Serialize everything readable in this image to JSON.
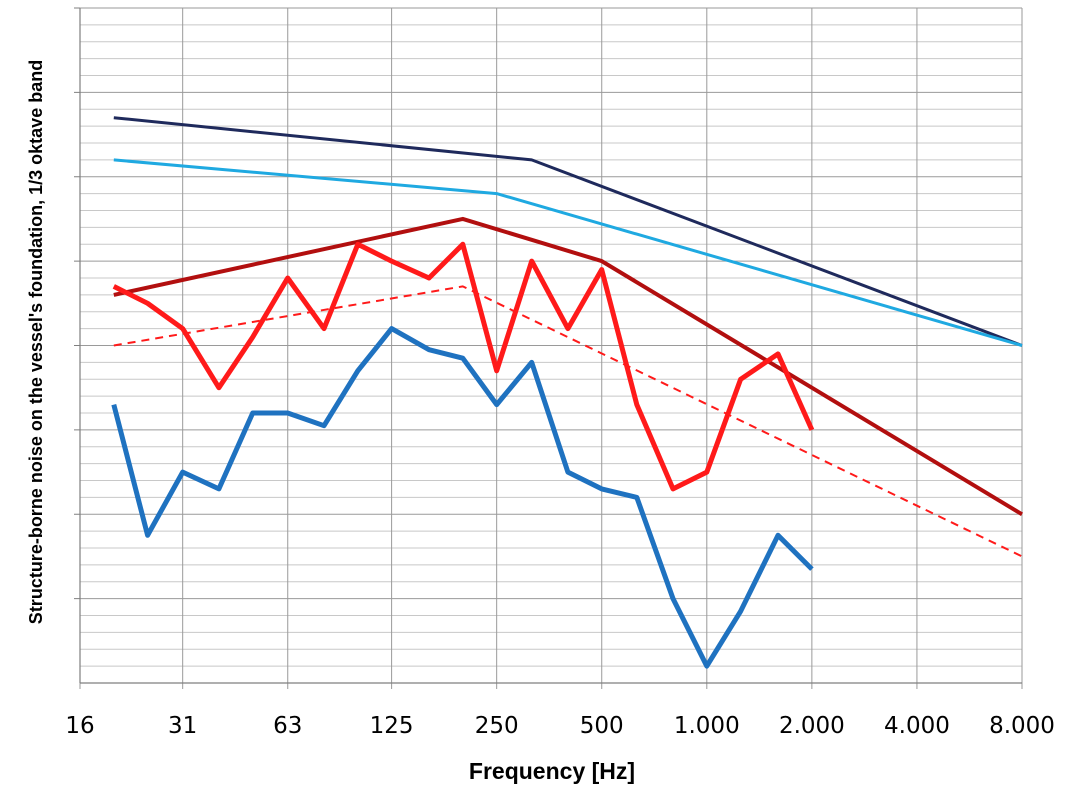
{
  "chart_data": {
    "type": "line",
    "title": "",
    "xlabel": "Frequency  [Hz]",
    "ylabel": "Structure-borne noise on the vessel's foundation, 1/3 oktave band",
    "x_scale": "log2",
    "xlim": [
      16,
      8000
    ],
    "ylim": [
      0,
      8
    ],
    "x_tick_labels": [
      "16",
      "31",
      "63",
      "125",
      "250",
      "500",
      "1.000",
      "2.000",
      "4.000",
      "8.000"
    ],
    "x_tick_values": [
      16,
      31.5,
      63,
      125,
      250,
      500,
      1000,
      2000,
      4000,
      8000
    ],
    "y_tick_labels": [
      "",
      "",
      "",
      "",
      "",
      "",
      "",
      "",
      ""
    ],
    "y_major_step": 1,
    "y_minor_step": 0.2,
    "grid": true,
    "legend": "none",
    "series": [
      {
        "color": "#1f2a5c",
        "width": 3,
        "dash": "solid",
        "x": [
          20,
          315,
          8000
        ],
        "y": [
          6.7,
          6.2,
          4.0
        ]
      },
      {
        "color": "#1fa9e1",
        "width": 3,
        "dash": "solid",
        "x": [
          20,
          250,
          8000
        ],
        "y": [
          6.2,
          5.8,
          4.0
        ]
      },
      {
        "color": "#b20f0f",
        "width": 4,
        "dash": "solid",
        "x": [
          20,
          200,
          500,
          8000
        ],
        "y": [
          4.6,
          5.5,
          5.0,
          2.0
        ]
      },
      {
        "color": "#ff1a1a",
        "width": 2,
        "dash": "dashed",
        "x": [
          20,
          200,
          8000
        ],
        "y": [
          4.0,
          4.7,
          1.5
        ]
      },
      {
        "color": "#ff1a1a",
        "width": 5,
        "dash": "solid",
        "x": [
          20,
          25,
          31.5,
          40,
          50,
          63,
          80,
          100,
          125,
          160,
          200,
          250,
          315,
          400,
          500,
          630,
          800,
          1000,
          1250,
          1600,
          2000
        ],
        "y": [
          4.7,
          4.5,
          4.2,
          3.5,
          4.1,
          4.8,
          4.2,
          5.2,
          5.0,
          4.8,
          5.2,
          3.7,
          5.0,
          4.2,
          4.9,
          3.3,
          2.3,
          2.5,
          3.6,
          3.9,
          3.0
        ]
      },
      {
        "color": "#1f72c0",
        "width": 5,
        "dash": "solid",
        "x": [
          20,
          25,
          31.5,
          40,
          50,
          63,
          80,
          100,
          125,
          160,
          200,
          250,
          315,
          400,
          500,
          630,
          800,
          1000,
          1250,
          1600,
          2000
        ],
        "y": [
          3.3,
          1.75,
          2.5,
          2.3,
          3.2,
          3.2,
          3.05,
          3.7,
          4.2,
          3.95,
          3.85,
          3.3,
          3.8,
          2.5,
          2.3,
          2.2,
          1.0,
          0.2,
          0.85,
          1.75,
          1.35
        ]
      }
    ]
  }
}
